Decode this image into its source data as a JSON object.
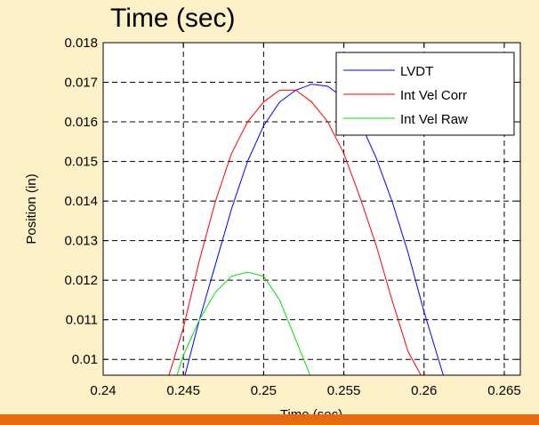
{
  "slide": {
    "title": "Time (sec)",
    "background_color": "#fdf1c8",
    "accent_color": "#e86a10"
  },
  "chart_data": {
    "type": "line",
    "xlabel": "Time (sec)",
    "ylabel": "Position (in)",
    "xlim": [
      0.24,
      0.266
    ],
    "ylim": [
      0.0096,
      0.018
    ],
    "xticks": [
      0.24,
      0.245,
      0.25,
      0.255,
      0.26,
      0.265
    ],
    "xtick_labels": [
      "0.24",
      "0.245",
      "0.25",
      "0.255",
      "0.26",
      "0.265"
    ],
    "yticks": [
      0.01,
      0.011,
      0.012,
      0.013,
      0.014,
      0.015,
      0.016,
      0.017,
      0.018
    ],
    "ytick_labels": [
      "0.01",
      "0.011",
      "0.012",
      "0.013",
      "0.014",
      "0.015",
      "0.016",
      "0.017",
      "0.018"
    ],
    "grid": true,
    "legend_position": "top-right",
    "series": [
      {
        "name": "LVDT",
        "color": "#0000ff",
        "x": [
          0.2451,
          0.246,
          0.247,
          0.248,
          0.249,
          0.25,
          0.251,
          0.252,
          0.253,
          0.254,
          0.255,
          0.256,
          0.257,
          0.258,
          0.259,
          0.26,
          0.2612
        ],
        "y": [
          0.0096,
          0.011,
          0.0124,
          0.0138,
          0.015,
          0.0159,
          0.0165,
          0.0168,
          0.01695,
          0.0169,
          0.0166,
          0.016,
          0.0151,
          0.014,
          0.0127,
          0.0112,
          0.0096
        ]
      },
      {
        "name": "Int Vel Corr",
        "color": "#ff0000",
        "x": [
          0.2441,
          0.245,
          0.246,
          0.247,
          0.248,
          0.249,
          0.25,
          0.251,
          0.252,
          0.253,
          0.254,
          0.255,
          0.256,
          0.257,
          0.258,
          0.259,
          0.2598
        ],
        "y": [
          0.0096,
          0.0108,
          0.0125,
          0.014,
          0.0152,
          0.016,
          0.0165,
          0.0168,
          0.0168,
          0.0165,
          0.016,
          0.0152,
          0.0141,
          0.0129,
          0.0115,
          0.0102,
          0.0096
        ]
      },
      {
        "name": "Int Vel Raw",
        "color": "#00e000",
        "x": [
          0.2446,
          0.245,
          0.246,
          0.247,
          0.248,
          0.249,
          0.25,
          0.251,
          0.252,
          0.2529
        ],
        "y": [
          0.0096,
          0.0101,
          0.011,
          0.0117,
          0.0121,
          0.0122,
          0.0121,
          0.0115,
          0.0105,
          0.0096
        ]
      }
    ]
  }
}
